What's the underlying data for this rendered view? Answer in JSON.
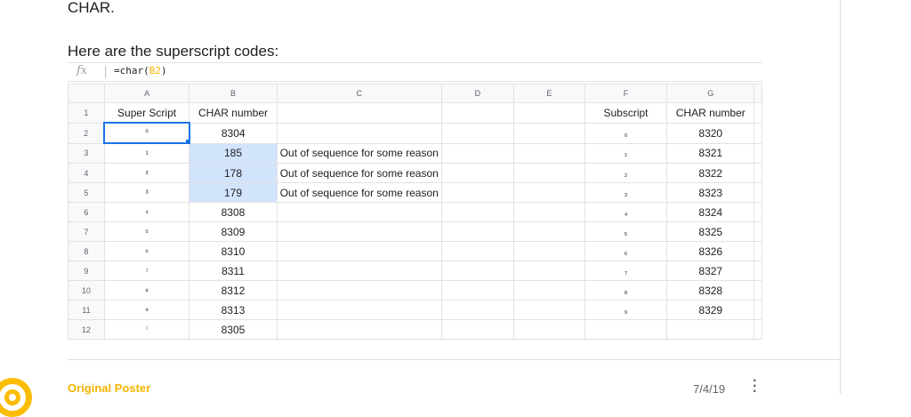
{
  "post": {
    "top_text": "CHAR.",
    "intro": "Here are the superscript codes:"
  },
  "formula_bar": {
    "fx": "fx",
    "prefix": "=char(",
    "ref": "B2",
    "suffix": ")"
  },
  "columns": [
    "A",
    "B",
    "C",
    "D",
    "E",
    "F",
    "G"
  ],
  "rows": [
    {
      "n": "1",
      "a": "Super Script",
      "b": "CHAR number",
      "c": "",
      "f": "Subscript",
      "g": "CHAR number"
    },
    {
      "n": "2",
      "a": "⁰",
      "b": "8304",
      "c": "",
      "f": "₀",
      "g": "8320"
    },
    {
      "n": "3",
      "a": "¹",
      "b": "185",
      "c": "Out of sequence for some reason",
      "f": "₁",
      "g": "8321"
    },
    {
      "n": "4",
      "a": "²",
      "b": "178",
      "c": "Out of sequence for some reason",
      "f": "₂",
      "g": "8322"
    },
    {
      "n": "5",
      "a": "³",
      "b": "179",
      "c": "Out of sequence for some reason",
      "f": "₃",
      "g": "8323"
    },
    {
      "n": "6",
      "a": "⁴",
      "b": "8308",
      "c": "",
      "f": "₄",
      "g": "8324"
    },
    {
      "n": "7",
      "a": "⁵",
      "b": "8309",
      "c": "",
      "f": "₅",
      "g": "8325"
    },
    {
      "n": "8",
      "a": "⁶",
      "b": "8310",
      "c": "",
      "f": "₆",
      "g": "8326"
    },
    {
      "n": "9",
      "a": "⁷",
      "b": "8311",
      "c": "",
      "f": "₇",
      "g": "8327"
    },
    {
      "n": "10",
      "a": "⁸",
      "b": "8312",
      "c": "",
      "f": "₈",
      "g": "8328"
    },
    {
      "n": "11",
      "a": "⁹",
      "b": "8313",
      "c": "",
      "f": "₉",
      "g": "8329"
    },
    {
      "n": "12",
      "a": "ⁱ",
      "b": "8305",
      "c": "",
      "f": "",
      "g": ""
    }
  ],
  "footer": {
    "poster_label": "Original Poster",
    "date": "7/4/19",
    "more_icon": "more-vert-icon",
    "avatar_color": "#fbbc04"
  }
}
